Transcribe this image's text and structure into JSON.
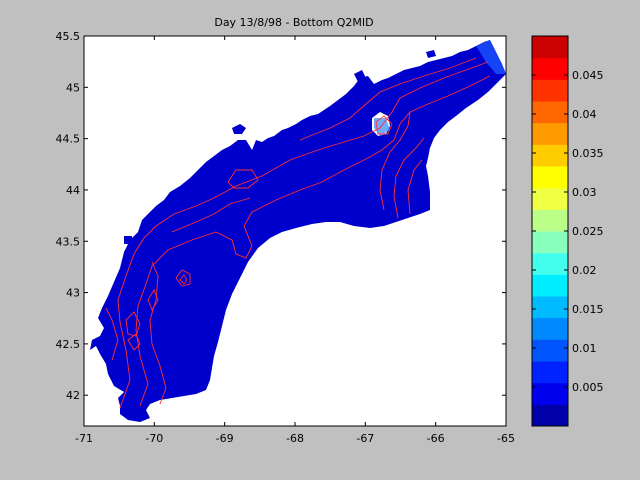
{
  "title": "Day 13/8/98 - Bottom Q2MID",
  "map": {
    "x_ticks": [
      "-71",
      "-70",
      "-69",
      "-68",
      "-67",
      "-66",
      "-65"
    ],
    "y_ticks": [
      "45.5",
      "45",
      "44.5",
      "44",
      "43.5",
      "43",
      "42.5",
      "42"
    ],
    "xlim": [
      -71,
      -65
    ],
    "ylim": [
      41.7,
      45.5
    ],
    "field_color": "#0000cc",
    "contour_color": "#ff3030",
    "land_color": "#ffffff"
  },
  "colorbar": {
    "range": [
      0,
      0.05
    ],
    "tick_labels": [
      "0.045",
      "0.04",
      "0.035",
      "0.03",
      "0.025",
      "0.02",
      "0.015",
      "0.01",
      "0.005"
    ],
    "colors": [
      "#0000aa",
      "#0000ee",
      "#0022ff",
      "#0055ff",
      "#0088ff",
      "#00bbff",
      "#00eeff",
      "#44ffee",
      "#88ffbb",
      "#bbff88",
      "#eeff44",
      "#ffff00",
      "#ffcc00",
      "#ff9900",
      "#ff6600",
      "#ff3300",
      "#ff0000",
      "#cc0000"
    ]
  }
}
